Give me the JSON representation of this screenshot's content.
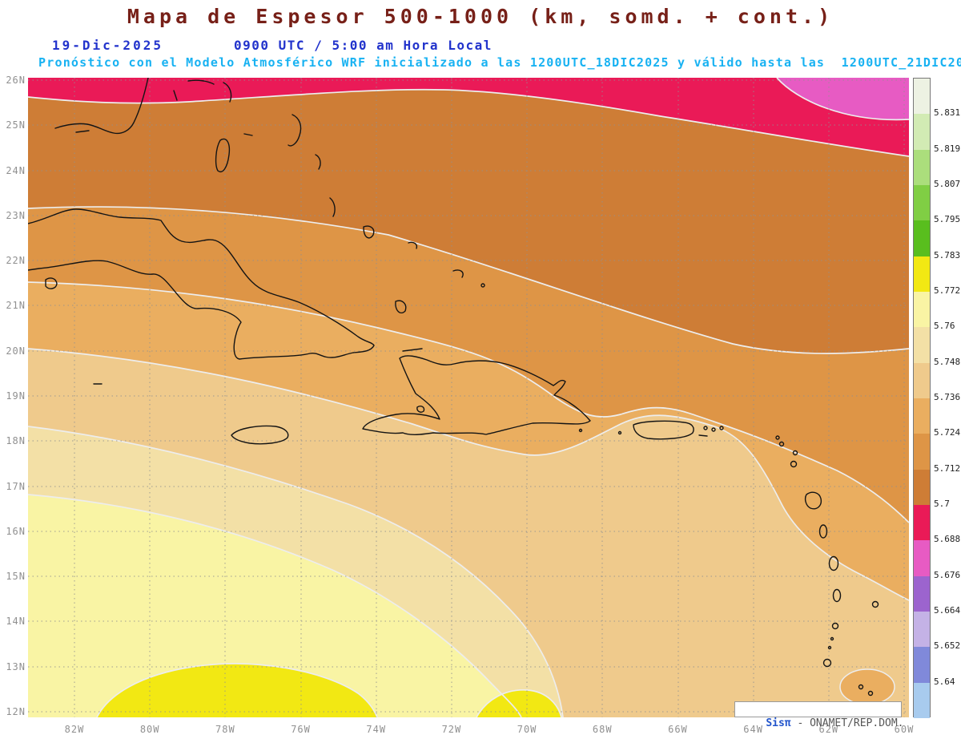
{
  "title": "Mapa de Espesor 500-1000 (km, somd. + cont.)",
  "header": {
    "date": "19-Dic-2025",
    "time": "0900 UTC / 5:00 am Hora Local",
    "forecast": "Pronóstico con el Modelo Atmosférico WRF inicializado a las 1200UTC_18DIC2025 y válido hasta las  1200UTC_21DIC2025"
  },
  "colors": {
    "title": "#772018",
    "datetime": "#2233cc",
    "forecast": "#18b2f2",
    "axis_labels": "#909090",
    "watermark_brand": "#2255cc",
    "watermark_text": "#555555"
  },
  "map": {
    "lat_labels": [
      "26N",
      "25N",
      "24N",
      "23N",
      "22N",
      "21N",
      "20N",
      "19N",
      "18N",
      "17N",
      "16N",
      "15N",
      "14N",
      "13N",
      "12N"
    ],
    "lon_labels": [
      "82W",
      "80W",
      "78W",
      "76W",
      "74W",
      "72W",
      "70W",
      "68W",
      "66W",
      "64W",
      "62W",
      "60W"
    ]
  },
  "colorbar": {
    "boundary_labels": [
      "5.831",
      "5.819",
      "5.807",
      "5.795",
      "5.783",
      "5.772",
      "5.76",
      "5.748",
      "5.736",
      "5.724",
      "5.712",
      "5.7",
      "5.688",
      "5.676",
      "5.664",
      "5.652",
      "5.64"
    ],
    "segment_colors": [
      "#EDF2E3",
      "#D2EBB4",
      "#ABDE7C",
      "#80CE44",
      "#59BE1E",
      "#F2E813",
      "#F9F4A4",
      "#F3E0A6",
      "#EFCA8C",
      "#EAAE60",
      "#DE9546",
      "#CE7D36",
      "#EA1A57",
      "#E75BC3",
      "#9C64CE",
      "#C4B2E6",
      "#8089DA",
      "#A8CBEE"
    ]
  },
  "watermark": {
    "brand": "Sisπ",
    "suffix": " - ONAMET/REP.DOM."
  }
}
